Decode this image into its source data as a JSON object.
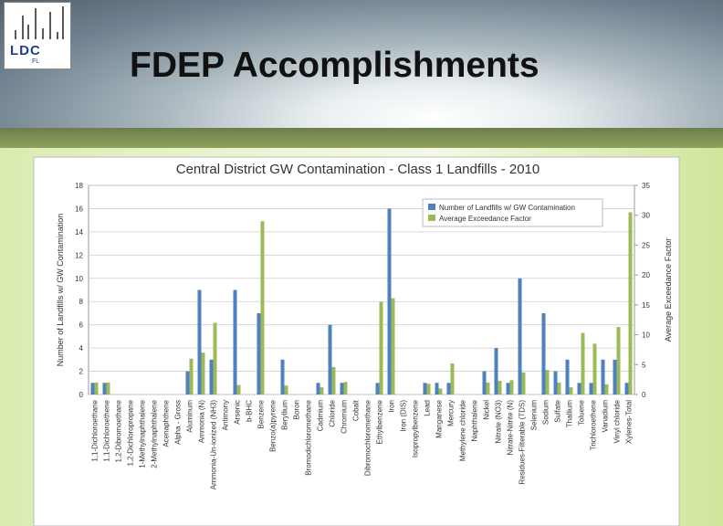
{
  "slide": {
    "title": "FDEP Accomplishments",
    "logo": "LDC",
    "logo_sub": "FL"
  },
  "chart_data": {
    "type": "bar",
    "title": "Central District GW Contamination - Class 1 Landfills - 2010",
    "y_label": "Number of Landfills w/ GW Contamination",
    "y2_label": "Average Exceedance Factor",
    "categories": [
      "1,1-Dichloroethane",
      "1,1-Dichloroethene",
      "1,2-Dibromoethane",
      "1,2-Dichloropropane",
      "1-Methylnaphthalene",
      "2-Methylnaphthalene",
      "Acenaphthene",
      "Alpha - Gross",
      "Aluminum",
      "Ammonia (N)",
      "Ammonia-Un-ionized (NH3)",
      "Antimony",
      "Arsenic",
      "b-BHC",
      "Benzene",
      "Benzo(a)pyrene",
      "Beryllium",
      "Boron",
      "Bromodichloromethane",
      "Cadmium",
      "Chloride",
      "Chromium",
      "Cobalt",
      "Dibromochloromethane",
      "Ethylbenzene",
      "Iron",
      "Iron (DIS)",
      "Isopropylbenzene",
      "Lead",
      "Manganese",
      "Mercury",
      "Methylene chloride",
      "Naphthalene",
      "Nickel",
      "Nitrate (NO3)",
      "Nitrate-Nitrite (N)",
      "Residues-Filterable (TDS)",
      "Selenium",
      "Sodium",
      "Sulfate",
      "Thallium",
      "Toluene",
      "Trichloroethene",
      "Vanadium",
      "Vinyl chloride",
      "Xylenes-Total"
    ],
    "series": [
      {
        "name": "Number of Landfills w/ GW Contamination",
        "color": "#4f81bd",
        "values": [
          1,
          1,
          0,
          0,
          0,
          0,
          0,
          0,
          2,
          9,
          3,
          0,
          9,
          0,
          7,
          0,
          3,
          0,
          0,
          1,
          6,
          1,
          0,
          0,
          1,
          16,
          0,
          0,
          1,
          1,
          1,
          0,
          0,
          2,
          4,
          1,
          10,
          0,
          7,
          2,
          3,
          1,
          1,
          3,
          3,
          1
        ]
      },
      {
        "name": "Average Exceedance Factor",
        "color": "#9bbb59",
        "axis": "y2",
        "values": [
          2,
          2,
          0,
          0,
          0,
          0,
          0,
          0,
          6,
          7,
          12,
          0,
          1.6,
          0,
          29,
          0,
          1.5,
          0,
          0,
          1.2,
          4.6,
          2.1,
          0,
          0,
          15.5,
          16.1,
          0,
          0,
          1.8,
          1,
          5.2,
          0,
          0,
          2,
          2.3,
          2.4,
          3.7,
          0,
          4.1,
          2,
          1.2,
          10.3,
          8.5,
          1.7,
          11.3,
          30.5
        ]
      }
    ],
    "ylim": [
      0,
      18
    ],
    "yticks": [
      0,
      2,
      4,
      6,
      8,
      10,
      12,
      14,
      16,
      18
    ],
    "y2lim": [
      0,
      35
    ],
    "y2ticks": [
      0,
      5,
      10,
      15,
      20,
      25,
      30,
      35
    ],
    "grid": true,
    "legend": "top-right"
  }
}
